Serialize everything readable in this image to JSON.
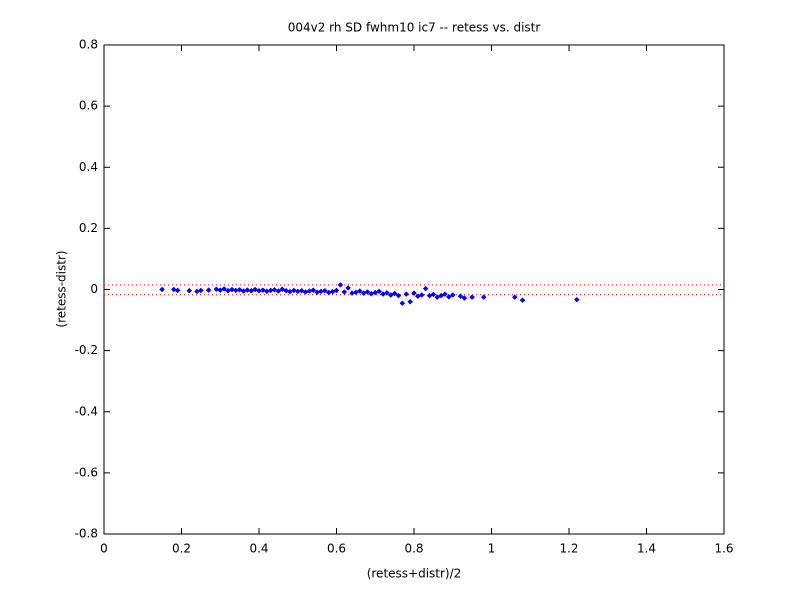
{
  "chart_data": {
    "type": "scatter",
    "title": "004v2 rh SD fwhm10 ic7 -- retess vs. distr",
    "x_label": "(retess+distr)/2",
    "y_label": "(retess-distr)",
    "xlim": [
      0,
      1.6
    ],
    "ylim": [
      -0.8,
      0.8
    ],
    "xticks": [
      0,
      0.2,
      0.4,
      0.6,
      0.8,
      1,
      1.2,
      1.4,
      1.6
    ],
    "yticks": [
      -0.8,
      -0.6,
      -0.4,
      -0.2,
      0,
      0.2,
      0.4,
      0.6,
      0.8
    ],
    "grid": false,
    "color": "#0000ff",
    "reference_lines": {
      "values": [
        0.015,
        -0.017
      ],
      "color": "#ff0000"
    },
    "x": [
      0.15,
      0.18,
      0.19,
      0.22,
      0.24,
      0.25,
      0.27,
      0.29,
      0.3,
      0.31,
      0.32,
      0.33,
      0.34,
      0.35,
      0.36,
      0.37,
      0.38,
      0.39,
      0.4,
      0.41,
      0.42,
      0.43,
      0.44,
      0.45,
      0.46,
      0.47,
      0.48,
      0.49,
      0.5,
      0.51,
      0.52,
      0.53,
      0.54,
      0.55,
      0.56,
      0.57,
      0.58,
      0.59,
      0.6,
      0.61,
      0.62,
      0.63,
      0.64,
      0.65,
      0.66,
      0.67,
      0.68,
      0.69,
      0.7,
      0.71,
      0.72,
      0.73,
      0.74,
      0.75,
      0.76,
      0.77,
      0.78,
      0.79,
      0.8,
      0.81,
      0.82,
      0.83,
      0.84,
      0.85,
      0.86,
      0.87,
      0.88,
      0.89,
      0.9,
      0.92,
      0.93,
      0.95,
      0.98,
      1.06,
      1.08,
      1.22
    ],
    "values": [
      0.0,
      0.0,
      -0.003,
      -0.004,
      -0.006,
      -0.003,
      -0.002,
      0.001,
      -0.002,
      0.002,
      -0.004,
      0.0,
      -0.003,
      -0.001,
      -0.005,
      -0.002,
      -0.004,
      0.0,
      -0.004,
      -0.002,
      -0.006,
      -0.003,
      -0.001,
      -0.005,
      0.001,
      -0.004,
      -0.007,
      -0.003,
      -0.006,
      -0.004,
      -0.008,
      -0.005,
      -0.002,
      -0.009,
      -0.006,
      -0.004,
      -0.01,
      -0.007,
      -0.003,
      0.015,
      -0.008,
      0.005,
      -0.012,
      -0.009,
      -0.005,
      -0.012,
      -0.008,
      -0.014,
      -0.01,
      -0.006,
      -0.015,
      -0.011,
      -0.018,
      -0.013,
      -0.02,
      -0.045,
      -0.015,
      -0.04,
      -0.012,
      -0.022,
      -0.018,
      0.003,
      -0.02,
      -0.016,
      -0.025,
      -0.02,
      -0.015,
      -0.024,
      -0.018,
      -0.022,
      -0.028,
      -0.025,
      -0.025,
      -0.025,
      -0.035,
      -0.033
    ]
  }
}
